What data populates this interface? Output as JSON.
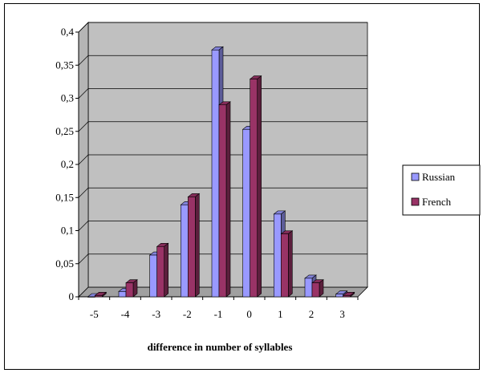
{
  "chart_data": {
    "type": "bar",
    "categories": [
      "-5",
      "-4",
      "-3",
      "-2",
      "-1",
      "0",
      "1",
      "2",
      "3"
    ],
    "series": [
      {
        "name": "Russian",
        "color": "#9999ff",
        "values": [
          0.0,
          0.008,
          0.063,
          0.139,
          0.373,
          0.253,
          0.125,
          0.028,
          0.004
        ]
      },
      {
        "name": "French",
        "color": "#993366",
        "values": [
          0.002,
          0.021,
          0.076,
          0.151,
          0.29,
          0.329,
          0.095,
          0.021,
          0.002
        ]
      }
    ],
    "xlabel": "difference in number of syllables",
    "ylabel": "",
    "ylim": [
      0,
      0.4
    ],
    "yticks": [
      "0",
      "0,05",
      "0,1",
      "0,15",
      "0,2",
      "0,25",
      "0,3",
      "0,35",
      "0,4"
    ],
    "grid": true,
    "legend_position": "right",
    "style": "3d-clustered"
  }
}
